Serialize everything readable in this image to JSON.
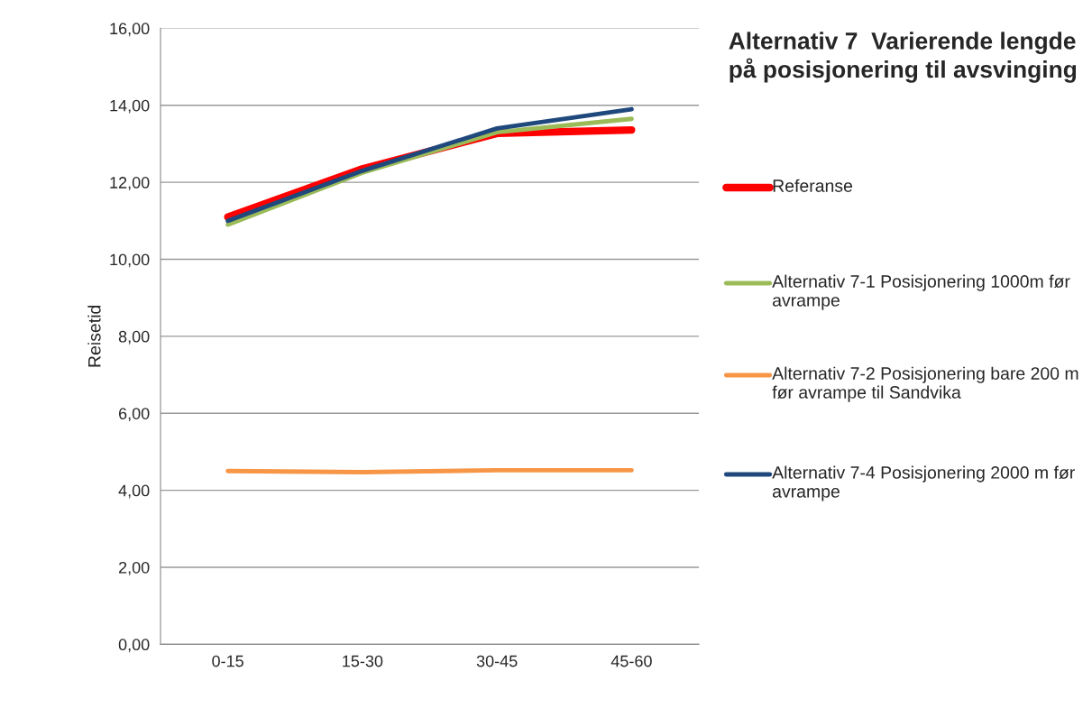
{
  "chart_data": {
    "type": "line",
    "title": "Alternativ 7  Varierende lengde på posisjonering til avsvinging",
    "ylabel": "Reisetid",
    "categories": [
      "0-15",
      "15-30",
      "30-45",
      "45-60"
    ],
    "series": [
      {
        "name": "Referanse",
        "color": "#ff0000",
        "values": [
          11.1,
          12.35,
          13.27,
          13.36
        ]
      },
      {
        "name": "Alternativ 7-1 Posisjonering 1000m før avrampe",
        "color": "#9bbb59",
        "values": [
          10.9,
          12.25,
          13.3,
          13.65
        ]
      },
      {
        "name": "Alternativ 7-2 Posisjonering bare 200 m før avrampe til Sandvika",
        "color": "#f79646",
        "values": [
          4.5,
          4.47,
          4.52,
          4.52
        ]
      },
      {
        "name": "Alternativ 7-4 Posisjonering 2000 m før avrampe",
        "color": "#1f497d",
        "values": [
          11.0,
          12.3,
          13.4,
          13.9
        ]
      }
    ],
    "ylim": [
      0,
      16
    ],
    "yticks": [
      {
        "value": 0,
        "label": "0,00"
      },
      {
        "value": 2,
        "label": "2,00"
      },
      {
        "value": 4,
        "label": "4,00"
      },
      {
        "value": 6,
        "label": "6,00"
      },
      {
        "value": 8,
        "label": "8,00"
      },
      {
        "value": 10,
        "label": "10,00"
      },
      {
        "value": 12,
        "label": "12,00"
      },
      {
        "value": 14,
        "label": "14,00"
      },
      {
        "value": 16,
        "label": "16,00"
      }
    ],
    "grid": "y",
    "legend": "right",
    "marker": "none",
    "line_style": "solid"
  }
}
